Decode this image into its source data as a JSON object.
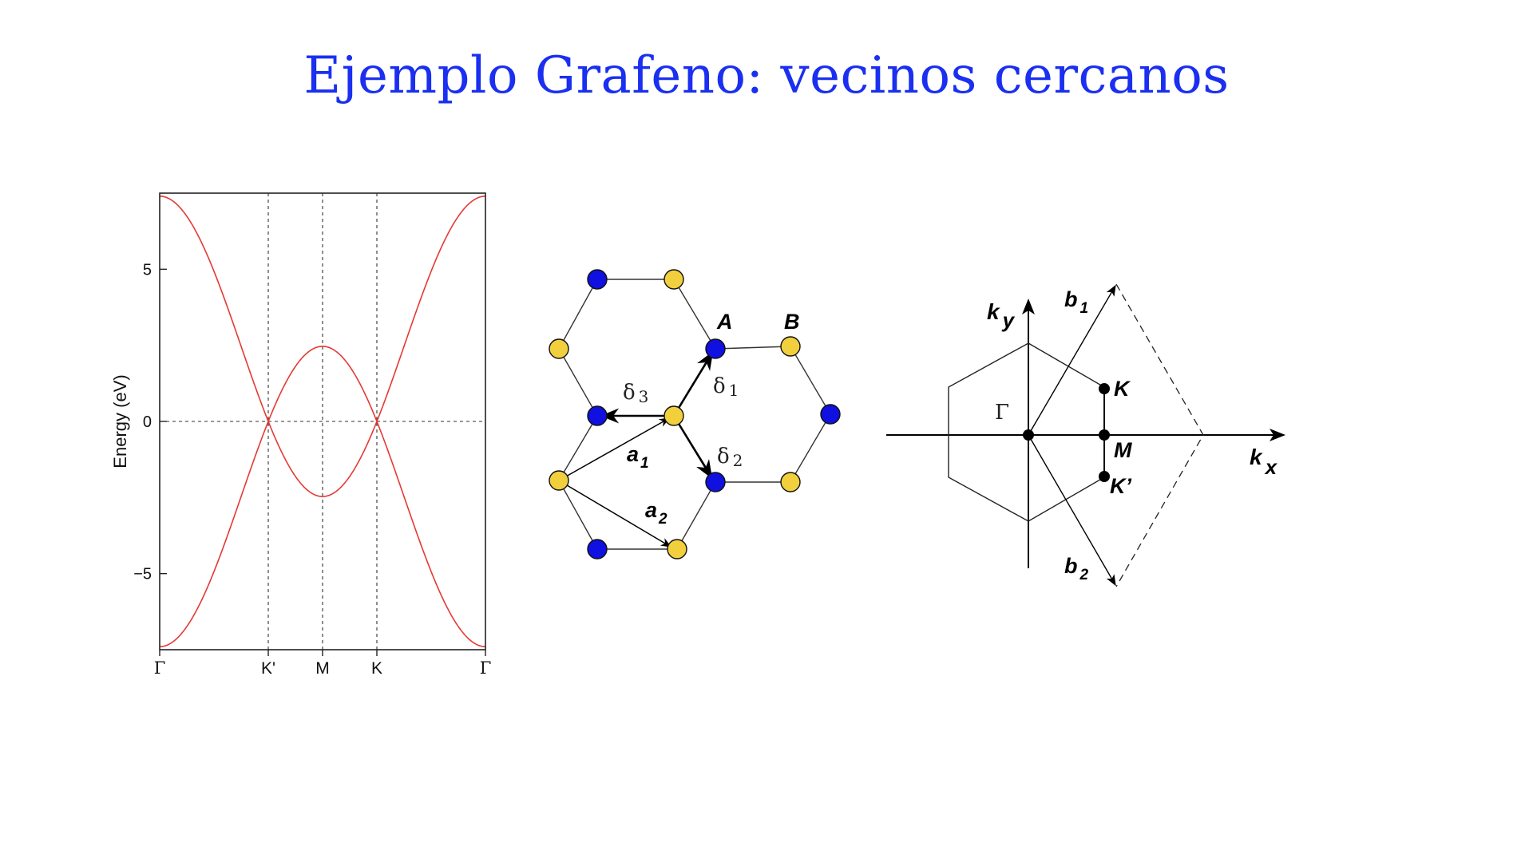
{
  "slide": {
    "title": "Ejemplo Grafeno: vecinos cercanos"
  },
  "colors": {
    "title": "#1a2ff0",
    "band": "#e53935",
    "atom_A": "#1010e0",
    "atom_B": "#f2cf3c"
  },
  "chart_data": {
    "type": "line",
    "ylabel": "Energy (eV)",
    "x_ticks": [
      "Γ",
      "K'",
      "M",
      "K",
      "Γ"
    ],
    "x_tick_positions": [
      0,
      1,
      1.5,
      2,
      3
    ],
    "y_ticks": [
      "5",
      "0",
      "−5"
    ],
    "y_tick_values": [
      5,
      0,
      -5
    ],
    "ylim": [
      -7.5,
      7.5
    ],
    "xlim": [
      0,
      3
    ],
    "grid": "dashed vertical lines at K', M, K and horizontal line at 0",
    "series": [
      {
        "x": [
          0,
          0.25,
          0.5,
          0.75,
          1,
          1.25,
          1.5,
          1.75,
          2,
          2.25,
          2.5,
          2.75,
          3
        ],
        "values": [
          7.4,
          6.45,
          4.2,
          1.9,
          0,
          1.72,
          2.45,
          1.72,
          0,
          1.9,
          4.2,
          6.45,
          7.4
        ]
      },
      {
        "x": [
          0,
          0.25,
          0.5,
          0.75,
          1,
          1.25,
          1.5,
          1.75,
          2,
          2.25,
          2.5,
          2.75,
          3
        ],
        "values": [
          -7.4,
          -6.45,
          -4.2,
          -1.9,
          0,
          -1.72,
          -2.45,
          -1.72,
          0,
          -1.9,
          -4.2,
          -6.45,
          -7.4
        ]
      }
    ]
  },
  "lattice": {
    "label_A": "A",
    "label_B": "B",
    "delta_1": "δ",
    "delta_1_sub": "1",
    "delta_2": "δ",
    "delta_2_sub": "2",
    "delta_3": "δ",
    "delta_3_sub": "3",
    "a_1": "a",
    "a_1_sub": "1",
    "a_2": "a",
    "a_2_sub": "2"
  },
  "brillouin": {
    "kx": "k",
    "kx_sub": "x",
    "ky": "k",
    "ky_sub": "y",
    "b_1": "b",
    "b_1_sub": "1",
    "b_2": "b",
    "b_2_sub": "2",
    "gamma": "Γ",
    "K": "K",
    "Kp": "K’",
    "M": "M"
  }
}
